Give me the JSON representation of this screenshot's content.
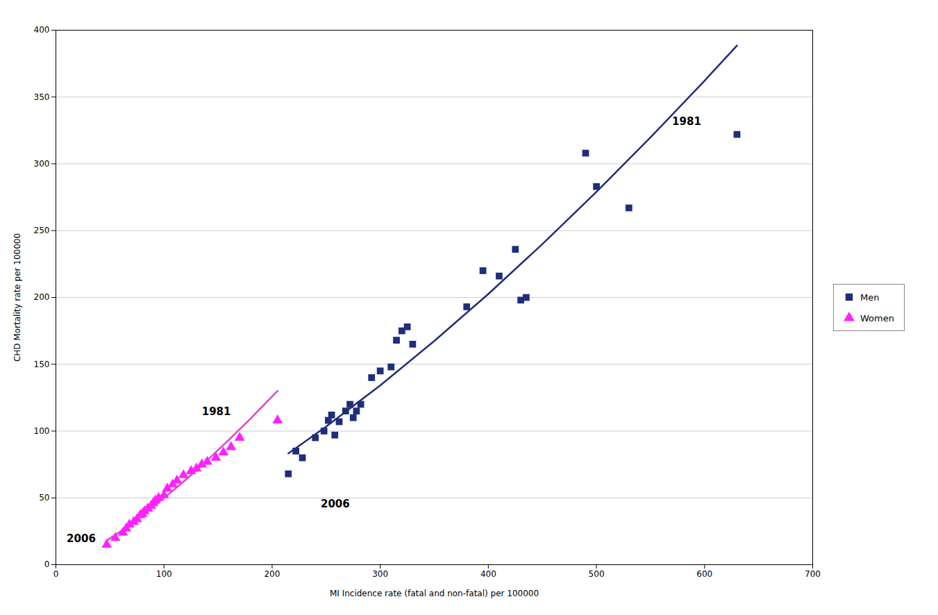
{
  "chart_data": {
    "type": "scatter",
    "xlabel": "MI Incidence rate (fatal and non-fatal) per 100000",
    "ylabel": "CHD Mortality rate per 100000",
    "xlim": [
      0,
      700
    ],
    "ylim": [
      0,
      400
    ],
    "xticks": [
      0,
      100,
      200,
      300,
      400,
      500,
      600,
      700
    ],
    "yticks": [
      0,
      50,
      100,
      150,
      200,
      250,
      300,
      350,
      400
    ],
    "grid": "y",
    "legend": "right",
    "series": [
      {
        "name": "Men",
        "type": "scatter",
        "marker": "square",
        "color": "#1f2d7b",
        "x": [
          215,
          222,
          228,
          240,
          248,
          252,
          255,
          258,
          262,
          268,
          272,
          275,
          278,
          282,
          292,
          300,
          310,
          315,
          320,
          325,
          330,
          380,
          395,
          410,
          425,
          430,
          435,
          490,
          500,
          530,
          630
        ],
        "values": [
          68,
          85,
          80,
          95,
          100,
          108,
          112,
          97,
          107,
          115,
          120,
          110,
          115,
          120,
          140,
          145,
          148,
          168,
          175,
          178,
          165,
          193,
          220,
          216,
          236,
          198,
          200,
          308,
          283,
          267,
          322
        ]
      },
      {
        "name": "Women",
        "type": "scatter",
        "marker": "triangle",
        "color": "#ff22ff",
        "x": [
          47,
          55,
          62,
          65,
          68,
          72,
          75,
          78,
          80,
          82,
          85,
          88,
          90,
          92,
          95,
          100,
          103,
          108,
          112,
          118,
          125,
          130,
          135,
          140,
          148,
          155,
          162,
          170,
          205
        ],
        "values": [
          15,
          20,
          24,
          27,
          30,
          32,
          34,
          37,
          38,
          40,
          42,
          44,
          46,
          48,
          50,
          52,
          57,
          60,
          63,
          67,
          70,
          72,
          75,
          77,
          80,
          84,
          88,
          95,
          108
        ]
      },
      {
        "type": "line",
        "line_style": "solid",
        "color": "#1f2d7b",
        "x": [
          215,
          250,
          300,
          350,
          400,
          450,
          500,
          550,
          600,
          630
        ],
        "values": [
          83.3,
          103.4,
          134.2,
          167.4,
          202.6,
          239.9,
          279.0,
          319.8,
          362.2,
          388.5
        ]
      },
      {
        "type": "line",
        "line_style": "solid",
        "color": "#dd44cc",
        "x": [
          47,
          60,
          80,
          100,
          120,
          140,
          160,
          180,
          205
        ],
        "values": [
          18.1,
          25.1,
          36.9,
          49.8,
          63.5,
          78.1,
          93.4,
          109.3,
          130.1
        ]
      }
    ],
    "annotations": [
      {
        "text": "1981",
        "x": 570,
        "y": 329
      },
      {
        "text": "1981",
        "x": 135,
        "y": 112
      },
      {
        "text": "2006",
        "x": 245,
        "y": 43
      },
      {
        "text": "2006",
        "x": 10,
        "y": 17
      }
    ]
  }
}
